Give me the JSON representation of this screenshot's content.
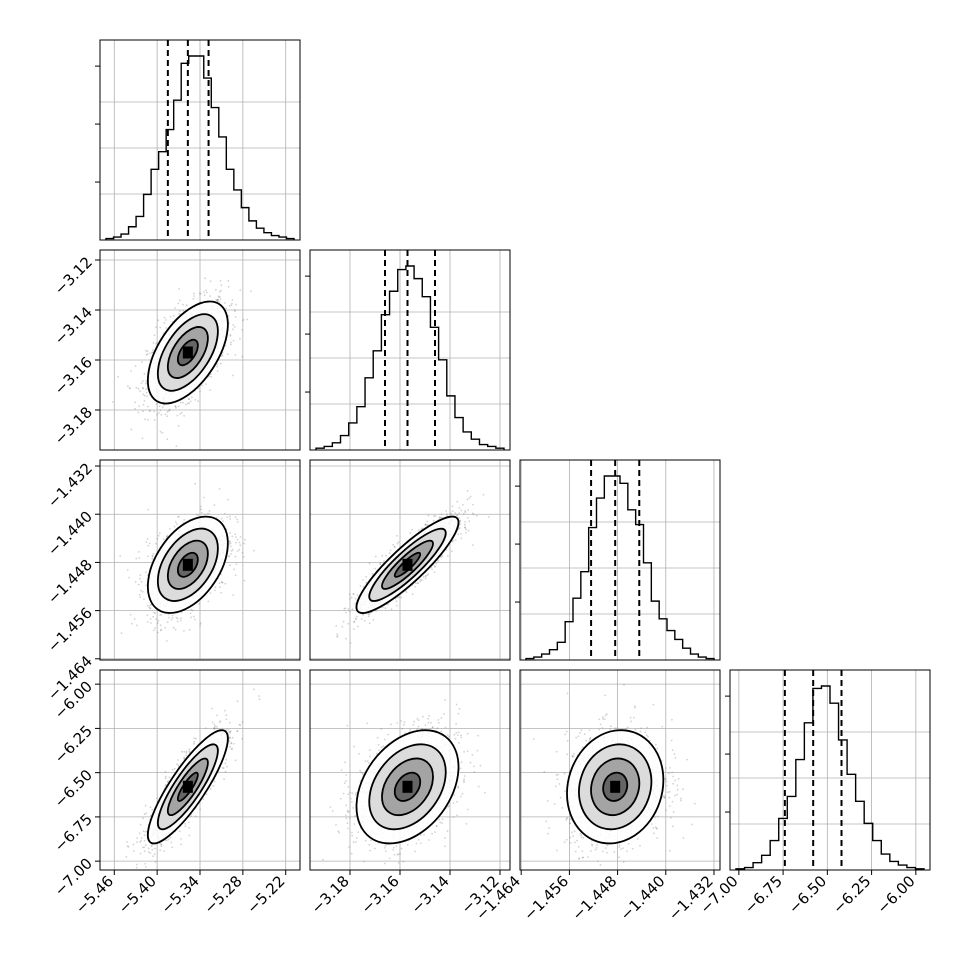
{
  "chart_data": {
    "type": "corner",
    "parameters": 4,
    "axis_ranges": [
      [
        -5.48,
        -5.2
      ],
      [
        -3.196,
        -3.116
      ],
      [
        -1.4642,
        -1.431
      ],
      [
        -7.05,
        -5.92
      ]
    ],
    "x_ticks": [
      [
        -5.46,
        -5.4,
        -5.34,
        -5.28,
        -5.22
      ],
      [
        -3.18,
        -3.16,
        -3.14,
        -3.12
      ],
      [
        -1.464,
        -1.456,
        -1.448,
        -1.44,
        -1.432
      ],
      [
        -7.0,
        -6.75,
        -6.5,
        -6.25,
        -6.0
      ]
    ],
    "x_tick_labels": [
      [
        "−5.46",
        "−5.40",
        "−5.34",
        "−5.28",
        "−5.22"
      ],
      [
        "−3.18",
        "−3.16",
        "−3.14",
        "−3.12"
      ],
      [
        "−1.464",
        "−1.456",
        "−1.448",
        "−1.440",
        "−1.432"
      ],
      [
        "−7.00",
        "−6.75",
        "−6.50",
        "−6.25",
        "−6.00"
      ]
    ],
    "y_ticks": [
      null,
      [
        -3.12,
        -3.14,
        -3.16,
        -3.18
      ],
      [
        -1.432,
        -1.44,
        -1.448,
        -1.456,
        -1.464
      ],
      [
        -6.0,
        -6.25,
        -6.5,
        -6.75,
        -7.0
      ]
    ],
    "y_tick_labels": [
      null,
      [
        "−3.12",
        "−3.14",
        "−3.16",
        "−3.18"
      ],
      [
        "−1.432",
        "−1.440",
        "−1.448",
        "−1.456",
        "−1.464"
      ],
      [
        "−6.00",
        "−6.25",
        "−6.50",
        "−6.75",
        "−7.00"
      ]
    ],
    "histograms": [
      {
        "quantiles": [
          -5.385,
          -5.357,
          -5.328
        ],
        "counts": [
          1,
          2,
          4,
          9,
          16,
          31,
          48,
          60,
          75,
          95,
          120,
          125,
          125,
          110,
          90,
          70,
          48,
          34,
          22,
          13,
          8,
          5,
          3,
          2,
          1
        ]
      },
      {
        "quantiles": [
          -3.166,
          -3.157,
          -3.146
        ],
        "counts": [
          1,
          2,
          4,
          8,
          15,
          24,
          40,
          55,
          75,
          88,
          100,
          102,
          95,
          85,
          68,
          50,
          30,
          18,
          10,
          6,
          3,
          2,
          1
        ]
      },
      {
        "quantiles": [
          -1.4524,
          -1.4484,
          -1.4444
        ],
        "counts": [
          1,
          2,
          4,
          7,
          12,
          26,
          42,
          60,
          90,
          110,
          125,
          125,
          120,
          102,
          92,
          66,
          40,
          28,
          20,
          14,
          8,
          4,
          2,
          1
        ]
      },
      {
        "quantiles": [
          -6.74,
          -6.58,
          -6.42
        ],
        "counts": [
          1,
          2,
          6,
          12,
          24,
          42,
          60,
          90,
          120,
          148,
          150,
          136,
          106,
          78,
          56,
          38,
          24,
          13,
          7,
          4,
          2,
          1
        ]
      }
    ],
    "pairs": [
      {
        "row": 1,
        "col": 0,
        "mean": [
          -5.357,
          -3.157
        ],
        "std": [
          0.028,
          0.0102
        ],
        "corr": 0.55
      },
      {
        "row": 2,
        "col": 0,
        "mean": [
          -5.357,
          -1.4484
        ],
        "std": [
          0.028,
          0.004
        ],
        "corr": 0.45
      },
      {
        "row": 2,
        "col": 1,
        "mean": [
          -3.157,
          -1.4484
        ],
        "std": [
          0.0102,
          0.004
        ],
        "corr": 0.88
      },
      {
        "row": 3,
        "col": 0,
        "mean": [
          -5.357,
          -6.58
        ],
        "std": [
          0.028,
          0.16
        ],
        "corr": 0.85
      },
      {
        "row": 3,
        "col": 1,
        "mean": [
          -3.157,
          -6.58
        ],
        "std": [
          0.0102,
          0.16
        ],
        "corr": 0.35
      },
      {
        "row": 3,
        "col": 2,
        "mean": [
          -1.4484,
          -6.58
        ],
        "std": [
          0.004,
          0.16
        ],
        "corr": 0.12
      }
    ],
    "contour_levels_sigma": [
      0.5,
      1.0,
      1.5,
      2.0
    ],
    "grid": true,
    "colors": {
      "points": "#808080",
      "lines": "#000000",
      "grid": "#b0b0b0"
    }
  }
}
